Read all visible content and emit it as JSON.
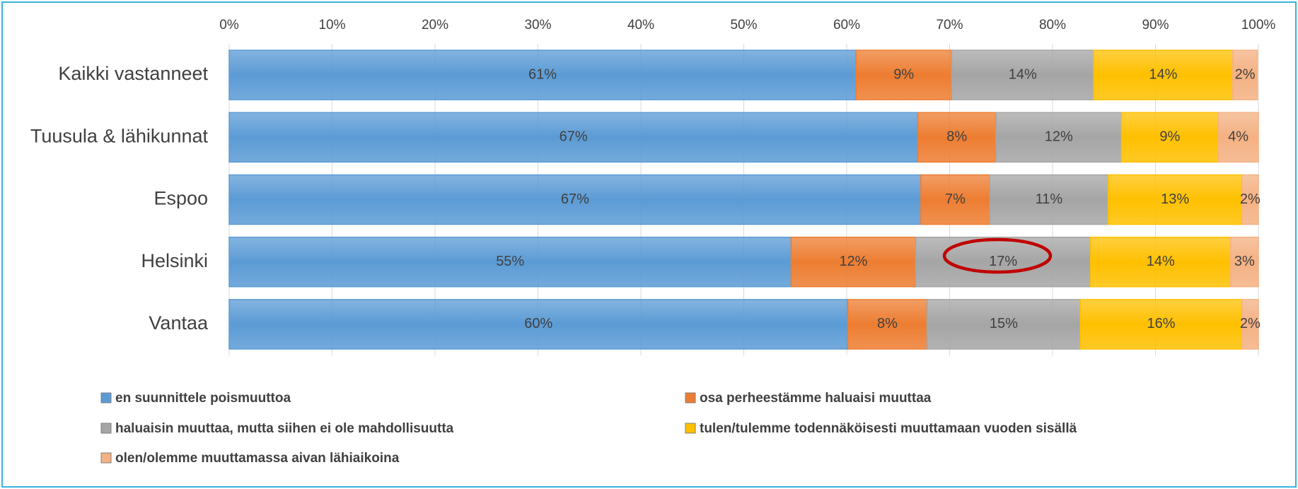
{
  "chart_data": {
    "type": "hbar_stacked",
    "categories": [
      "Kaikki vastanneet",
      "Tuusula & lähikunnat",
      "Espoo",
      "Helsinki",
      "Vantaa"
    ],
    "series": [
      {
        "name": "en suunnittele poismuuttoa",
        "color": "#5b9bd5",
        "values": [
          60.9,
          66.9,
          67.2,
          54.6,
          60.1
        ],
        "value_labels": [
          "61%",
          "67%",
          "67%",
          "55%",
          "60%"
        ]
      },
      {
        "name": "osa perheestämme haluaisi muuttaa",
        "color": "#ed7d31",
        "values": [
          9.3,
          7.6,
          6.7,
          12.1,
          7.7
        ],
        "value_labels": [
          "9%",
          "8%",
          "7%",
          "12%",
          "8%"
        ]
      },
      {
        "name": "haluaisin muuttaa, mutta siihen ei ole mahdollisuutta",
        "color": "#a5a5a5",
        "values": [
          13.8,
          12.2,
          11.5,
          17.0,
          14.9
        ],
        "value_labels": [
          "14%",
          "12%",
          "11%",
          "17%",
          "15%"
        ]
      },
      {
        "name": "tulen/tulemme todennäköisesti muuttamaan vuoden sisällä",
        "color": "#ffc000",
        "values": [
          13.5,
          9.4,
          13.0,
          13.6,
          15.7
        ],
        "value_labels": [
          "14%",
          "9%",
          "13%",
          "14%",
          "16%"
        ]
      },
      {
        "name": "olen/olemme muuttamassa aivan lähiaikoina",
        "color": "#f4b183",
        "values": [
          2.4,
          3.9,
          1.6,
          2.7,
          1.6
        ],
        "value_labels": [
          "2%",
          "4%",
          "2%",
          "3%",
          "2%"
        ]
      }
    ],
    "xlim": [
      0,
      100
    ],
    "xticks": [
      {
        "value": 0,
        "label": "0%"
      },
      {
        "value": 10,
        "label": "10%"
      },
      {
        "value": 20,
        "label": "20%"
      },
      {
        "value": 30,
        "label": "30%"
      },
      {
        "value": 40,
        "label": "40%"
      },
      {
        "value": 50,
        "label": "50%"
      },
      {
        "value": 60,
        "label": "60%"
      },
      {
        "value": 70,
        "label": "70%"
      },
      {
        "value": 80,
        "label": "80%"
      },
      {
        "value": 90,
        "label": "90%"
      },
      {
        "value": 100,
        "label": "100%"
      }
    ],
    "grid": true
  }
}
